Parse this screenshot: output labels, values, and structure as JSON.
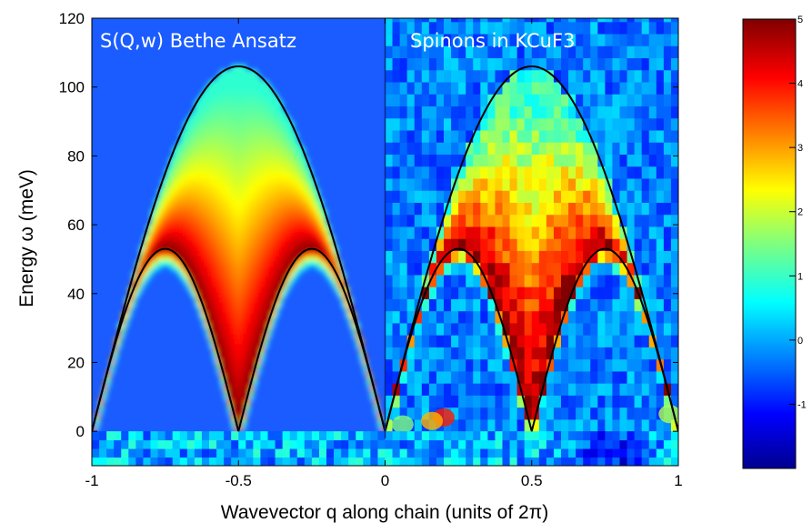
{
  "chart_data": {
    "type": "heatmap",
    "panels": [
      {
        "title": "S(Q,w) Bethe Ansatz",
        "q_range": [
          -1,
          0
        ]
      },
      {
        "title": "Spinons in KCuF3",
        "q_range": [
          0,
          1
        ]
      }
    ],
    "xlabel": "Wavevector q along chain (units of 2π)",
    "ylabel": "Energy ω (meV)",
    "xlim": [
      -1,
      1
    ],
    "ylim": [
      -10,
      120
    ],
    "xticks": [
      -1,
      -0.5,
      0,
      0.5,
      1
    ],
    "xtick_labels": [
      "-1",
      "-0.5",
      "0",
      "0.5",
      "1"
    ],
    "yticks": [
      0,
      20,
      40,
      60,
      80,
      100,
      120
    ],
    "ytick_labels": [
      "0",
      "20",
      "40",
      "60",
      "80",
      "100",
      "120"
    ],
    "upper_boundary_peak_meV": 106,
    "lower_boundary_peak_meV": 53,
    "colorbar": {
      "range": [
        -2,
        5
      ],
      "tick_values": [
        5,
        4,
        3,
        2,
        1,
        0,
        -1
      ],
      "tick_labels": [
        "5",
        "4",
        "3",
        "2",
        "1",
        "0",
        "-1"
      ],
      "colormap": "jet"
    },
    "colors": {
      "boundary_line": "#000000",
      "panel_title": "#ffffff",
      "background_blue": "#1a5cff"
    }
  }
}
